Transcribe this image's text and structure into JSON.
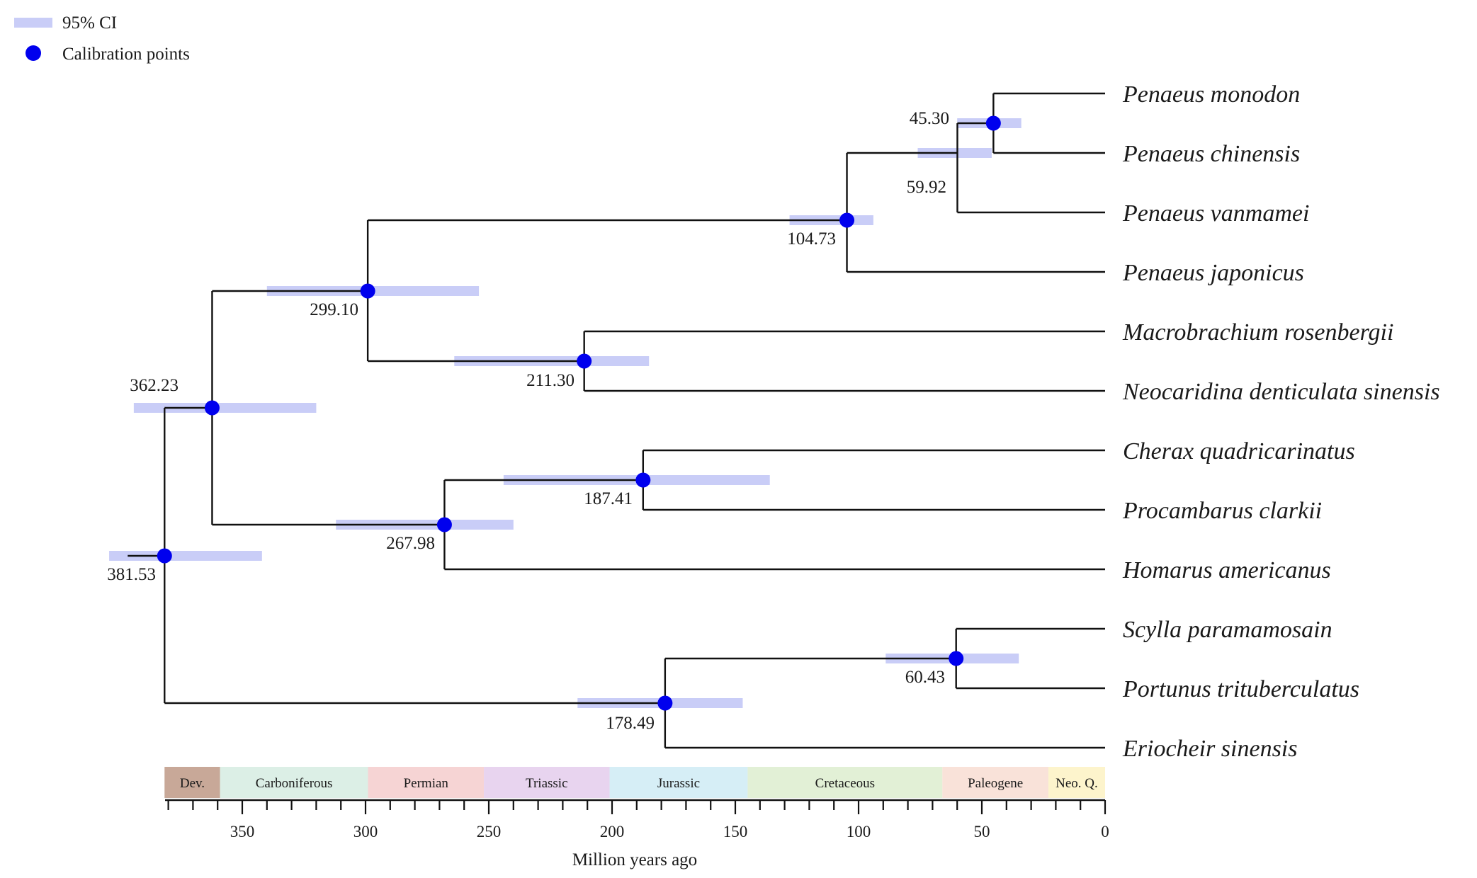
{
  "legend": {
    "ci_label": "95% CI",
    "calibration_label": "Calibration points",
    "ci_color": "#c9cdf7",
    "dot_color": "#0000ee"
  },
  "taxa": [
    "Penaeus monodon",
    "Penaeus chinensis",
    "Penaeus vanmamei",
    "Penaeus japonicus",
    "Macrobrachium rosenbergii",
    "Neocaridina denticulata sinensis",
    "Cherax quadricarinatus",
    "Procambarus clarkii",
    "Homarus americanus",
    "Scylla paramamosain",
    "Portunus trituberculatus",
    "Eriocheir sinensis"
  ],
  "nodes": [
    {
      "id": "n1",
      "label": "45.30",
      "age": 45.3,
      "ci": [
        34,
        60
      ],
      "calibration": true
    },
    {
      "id": "n2",
      "label": "59.92",
      "age": 59.92,
      "ci": [
        46,
        76
      ],
      "calibration": false
    },
    {
      "id": "n3",
      "label": "104.73",
      "age": 104.73,
      "ci": [
        94,
        128
      ],
      "calibration": true
    },
    {
      "id": "n4",
      "label": "211.30",
      "age": 211.3,
      "ci": [
        185,
        264
      ],
      "calibration": true
    },
    {
      "id": "n5",
      "label": "299.10",
      "age": 299.1,
      "ci": [
        254,
        340
      ],
      "calibration": true
    },
    {
      "id": "n6",
      "label": "187.41",
      "age": 187.41,
      "ci": [
        136,
        244
      ],
      "calibration": true
    },
    {
      "id": "n7",
      "label": "267.98",
      "age": 267.98,
      "ci": [
        240,
        312
      ],
      "calibration": true
    },
    {
      "id": "n8",
      "label": "362.23",
      "age": 362.23,
      "ci": [
        320,
        394
      ],
      "calibration": true
    },
    {
      "id": "n9",
      "label": "60.43",
      "age": 60.43,
      "ci": [
        35,
        89
      ],
      "calibration": true
    },
    {
      "id": "n10",
      "label": "178.49",
      "age": 178.49,
      "ci": [
        147,
        214
      ],
      "calibration": true
    },
    {
      "id": "n11",
      "label": "381.53",
      "age": 381.53,
      "ci": [
        342,
        404
      ],
      "calibration": true
    }
  ],
  "root_age": 381.53,
  "axis": {
    "title": "Million years ago",
    "min": 0,
    "max": 381.53,
    "ticks": [
      350,
      300,
      250,
      200,
      150,
      100,
      50,
      0
    ]
  },
  "periods": [
    {
      "name": "Dev.",
      "start": 381.53,
      "end": 359,
      "color": "#c8a898"
    },
    {
      "name": "Carboniferous",
      "start": 359,
      "end": 299,
      "color": "#dcefe6"
    },
    {
      "name": "Permian",
      "start": 299,
      "end": 252,
      "color": "#f6d4d4"
    },
    {
      "name": "Triassic",
      "start": 252,
      "end": 201,
      "color": "#e8d4ef"
    },
    {
      "name": "Jurassic",
      "start": 201,
      "end": 145,
      "color": "#d6eef6"
    },
    {
      "name": "Cretaceous",
      "start": 145,
      "end": 66,
      "color": "#e2f0d6"
    },
    {
      "name": "Paleogene",
      "start": 66,
      "end": 23,
      "color": "#f9e2d9"
    },
    {
      "name": "Neo. Q.",
      "start": 23,
      "end": 0,
      "color": "#fdf4cc"
    }
  ]
}
